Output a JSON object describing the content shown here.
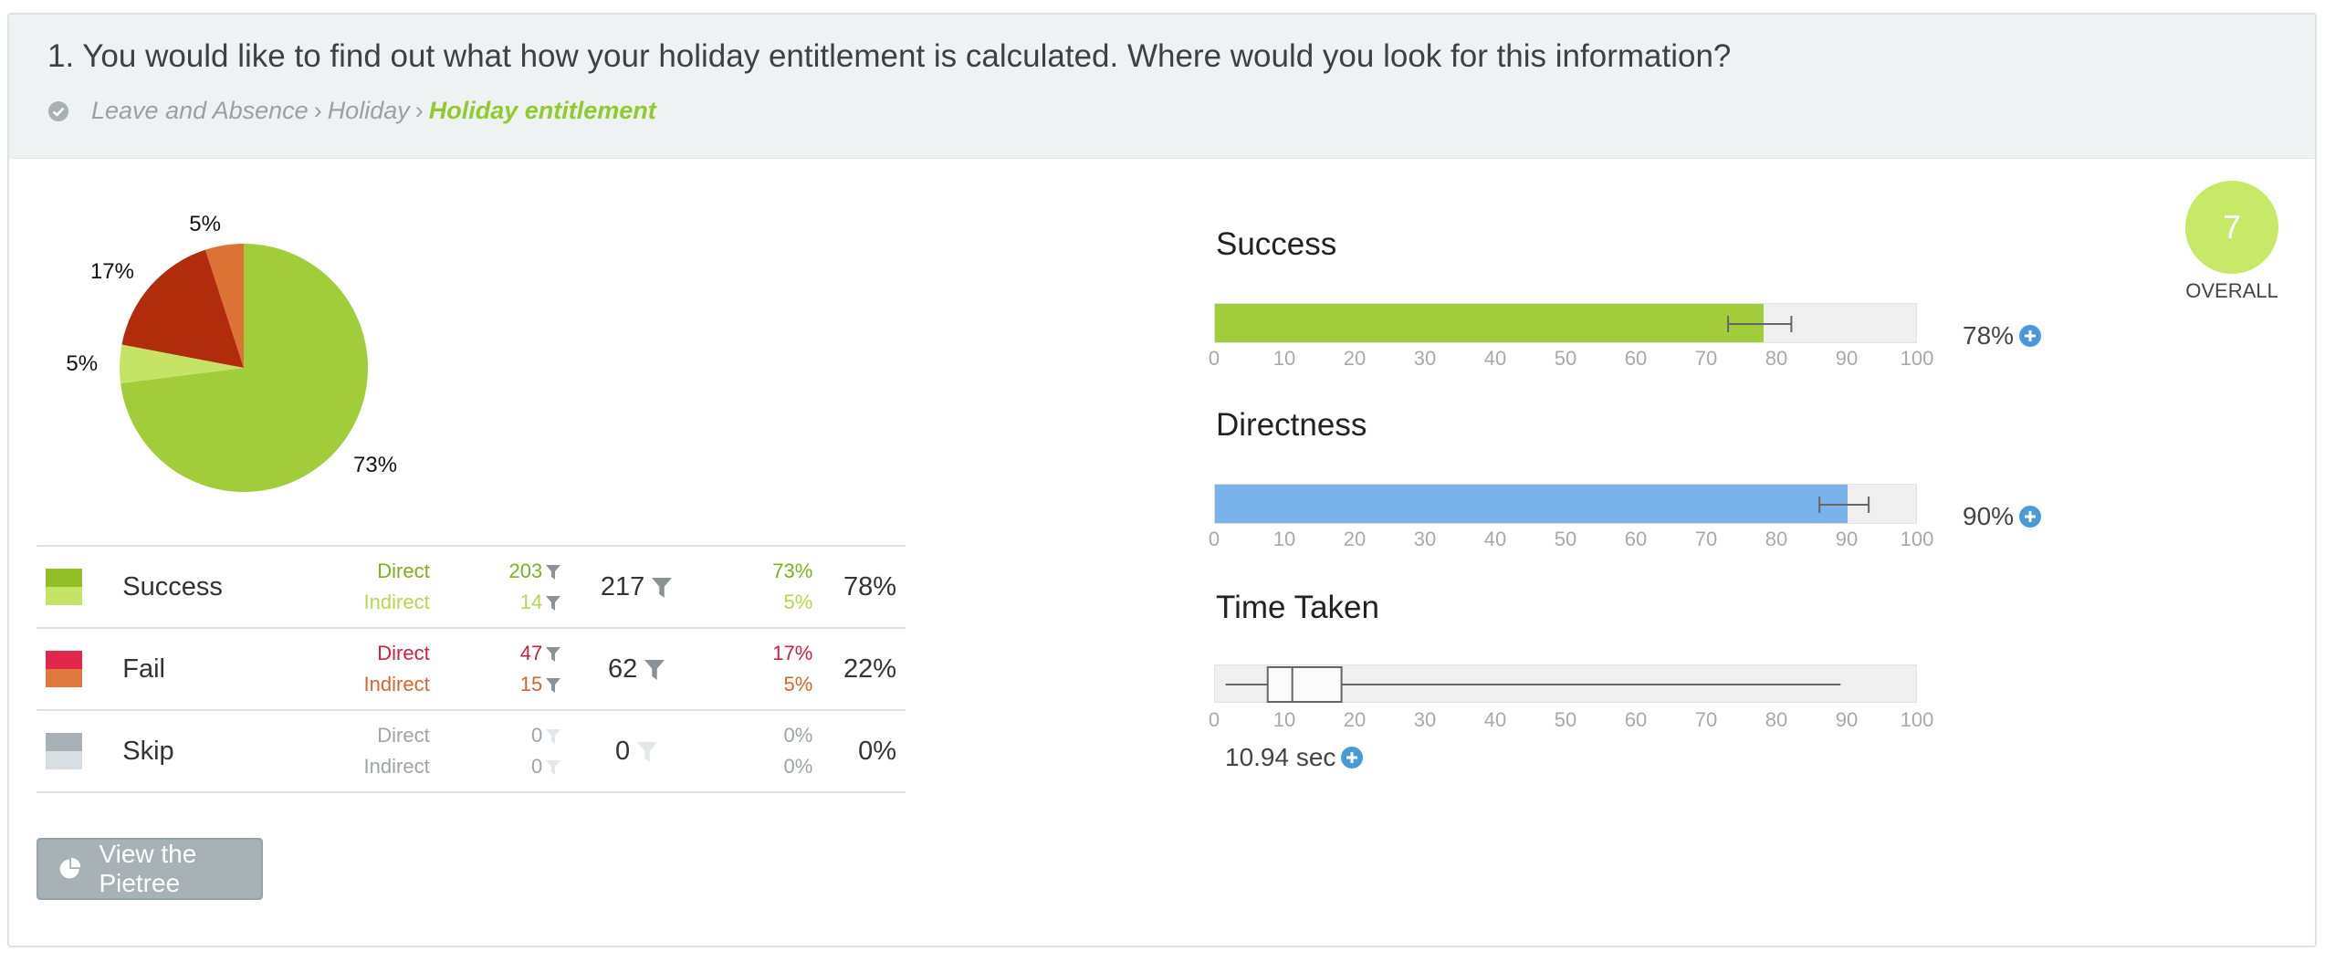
{
  "question": {
    "text": "1. You would like to find out what how your holiday entitlement is calculated. Where would you look for this information?",
    "breadcrumb": [
      "Leave and Absence",
      "Holiday",
      "Holiday entitlement"
    ],
    "separator": "›"
  },
  "chart_data": [
    {
      "type": "pie",
      "slices": [
        {
          "label": "Success Direct",
          "value": 73,
          "color": "#a2cd3a"
        },
        {
          "label": "Success Indirect",
          "value": 5,
          "color": "#c5e466"
        },
        {
          "label": "Fail Direct",
          "value": 17,
          "color": "#b02c0a"
        },
        {
          "label": "Fail Indirect",
          "value": 5,
          "color": "#dc7334"
        }
      ],
      "slice_labels": [
        "73%",
        "5%",
        "17%",
        "5%"
      ]
    },
    {
      "type": "bar",
      "title": "Success",
      "value": 78,
      "error_bar": [
        73,
        82
      ],
      "xlim": [
        0,
        100
      ],
      "ticks": [
        "0",
        "10",
        "20",
        "30",
        "40",
        "50",
        "60",
        "70",
        "80",
        "90",
        "100"
      ],
      "color": "#a2cd3a"
    },
    {
      "type": "bar",
      "title": "Directness",
      "value": 90,
      "error_bar": [
        86,
        93
      ],
      "xlim": [
        0,
        100
      ],
      "ticks": [
        "0",
        "10",
        "20",
        "30",
        "40",
        "50",
        "60",
        "70",
        "80",
        "90",
        "100"
      ],
      "color": "#7ab3ec"
    },
    {
      "type": "box",
      "title": "Time Taken",
      "whisker_low": 1.5,
      "q1": 7.5,
      "median": 11,
      "q3": 18,
      "whisker_high": 89,
      "xlim": [
        0,
        100
      ],
      "ticks": [
        "0",
        "10",
        "20",
        "30",
        "40",
        "50",
        "60",
        "70",
        "80",
        "90",
        "100"
      ]
    }
  ],
  "table": {
    "rows": [
      {
        "label": "Success",
        "colors": [
          "#90bf26",
          "#c5e466"
        ],
        "direct_label": "Direct",
        "indirect_label": "Indirect",
        "direct": "203",
        "indirect": "14",
        "total": "217",
        "direct_pct": "73%",
        "indirect_pct": "5%",
        "overall": "78%",
        "text_colors": [
          "#7fae1d",
          "#b4d94c"
        ]
      },
      {
        "label": "Fail",
        "colors": [
          "#e1284a",
          "#e0773c"
        ],
        "direct_label": "Direct",
        "indirect_label": "Indirect",
        "direct": "47",
        "indirect": "15",
        "total": "62",
        "direct_pct": "17%",
        "indirect_pct": "5%",
        "overall": "22%",
        "text_colors": [
          "#d0203c",
          "#d5652a"
        ]
      },
      {
        "label": "Skip",
        "colors": [
          "#a7b1b6",
          "#d7dee1"
        ],
        "direct_label": "Direct",
        "indirect_label": "Indirect",
        "direct": "0",
        "indirect": "0",
        "total": "0",
        "direct_pct": "0%",
        "indirect_pct": "0%",
        "overall": "0%",
        "text_colors": [
          "#9ea4a7",
          "#9ea4a7"
        ]
      }
    ]
  },
  "button": {
    "label": "View the Pietree",
    "icon": "pie-chart-icon"
  },
  "metrics": {
    "success": {
      "title": "Success",
      "value_label": "78%"
    },
    "directness": {
      "title": "Directness",
      "value_label": "90%"
    },
    "time": {
      "title": "Time Taken",
      "value_label": "10.94 sec"
    }
  },
  "overall": {
    "score": "7",
    "label": "OVERALL",
    "color": "#c8e868"
  }
}
